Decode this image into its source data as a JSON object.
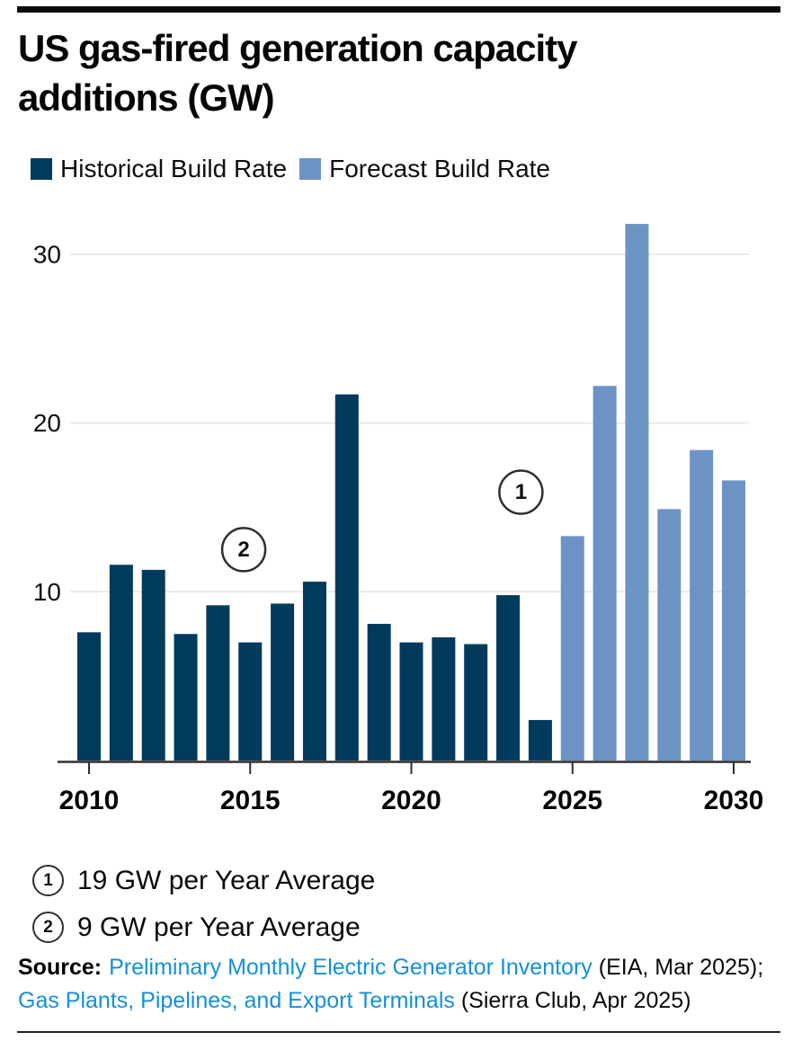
{
  "header": {
    "title_lines": [
      "US gas-fired generation capacity",
      "additions (GW)"
    ]
  },
  "legend": [
    {
      "label": "Historical Build Rate",
      "color": "#003A5D"
    },
    {
      "label": "Forecast Build Rate",
      "color": "#6D93C4"
    }
  ],
  "chart_data": {
    "type": "bar",
    "title": "US gas-fired generation capacity additions (GW)",
    "categories": [
      2010,
      2011,
      2012,
      2013,
      2014,
      2015,
      2016,
      2017,
      2018,
      2019,
      2020,
      2021,
      2022,
      2023,
      2024,
      2025,
      2026,
      2027,
      2028,
      2029,
      2030
    ],
    "series": [
      {
        "name": "Historical Build Rate",
        "color": "#003A5D",
        "values": [
          7.6,
          11.6,
          11.3,
          7.5,
          9.2,
          7.0,
          9.3,
          10.6,
          21.7,
          8.1,
          7.0,
          7.3,
          6.9,
          9.8,
          2.4,
          null,
          null,
          null,
          null,
          null,
          null
        ]
      },
      {
        "name": "Forecast Build Rate",
        "color": "#6D93C4",
        "values": [
          null,
          null,
          null,
          null,
          null,
          null,
          null,
          null,
          null,
          null,
          null,
          null,
          null,
          null,
          null,
          13.3,
          22.2,
          31.8,
          14.9,
          18.4,
          16.6
        ]
      }
    ],
    "xlabel": "",
    "ylabel": "",
    "ylim": [
      0,
      33.5
    ],
    "y_ticks": [
      10,
      20,
      30
    ],
    "x_tick_years": [
      2010,
      2015,
      2020,
      2025,
      2030
    ],
    "grid": true,
    "legend_position": "top-left",
    "annotations": [
      {
        "marker": "1",
        "year": 2023.4,
        "gw": 15.9
      },
      {
        "marker": "2",
        "year": 2014.8,
        "gw": 12.5
      }
    ]
  },
  "footnotes": [
    {
      "marker": "1",
      "label": "19 GW per Year Average"
    },
    {
      "marker": "2",
      "label": "9 GW per Year Average"
    }
  ],
  "source": {
    "label": "Source:",
    "link1": "Preliminary Monthly Electric Generator Inventory",
    "text1": " (EIA, Mar 2025); ",
    "link2": "Gas Plants, Pipelines, and Export Terminals",
    "text2": " (Sierra Club, Apr 2025)"
  }
}
